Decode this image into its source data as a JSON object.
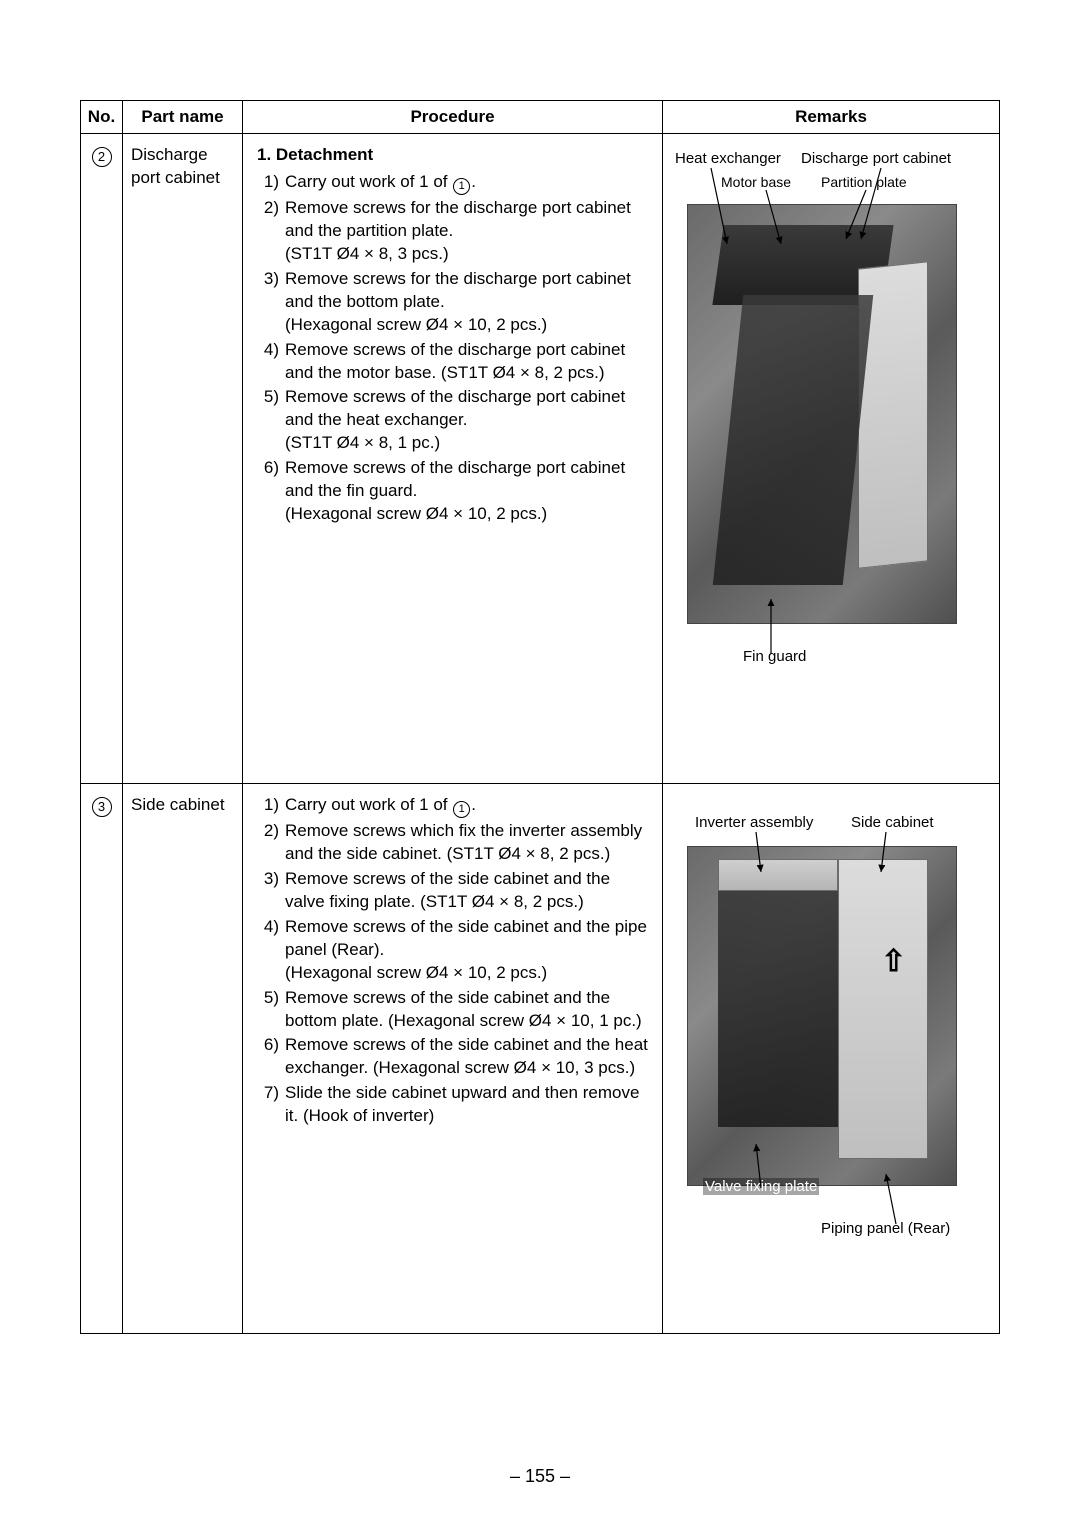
{
  "header": {
    "no": "No.",
    "part": "Part name",
    "proc": "Procedure",
    "rem": "Remarks"
  },
  "rows": [
    {
      "num": "2",
      "part": "Discharge port cabinet",
      "heading": "1. Detachment",
      "steps": [
        {
          "n": "1",
          "pre": "Carry out work of 1 of ",
          "circ": "1",
          "post": "."
        },
        {
          "n": "2",
          "text": "Remove screws for the discharge port cabinet and the partition plate.\n(ST1T Ø4 × 8, 3 pcs.)"
        },
        {
          "n": "3",
          "text": "Remove screws for the discharge port cabinet and the bottom plate.\n(Hexagonal screw Ø4 × 10, 2 pcs.)"
        },
        {
          "n": "4",
          "text": "Remove screws of the discharge port cabinet and the motor base. (ST1T Ø4 × 8, 2 pcs.)"
        },
        {
          "n": "5",
          "text": "Remove screws of the discharge port cabinet and the heat exchanger.\n(ST1T Ø4 × 8, 1 pc.)"
        },
        {
          "n": "6",
          "text": "Remove screws of the discharge port cabinet and the fin guard.\n(Hexagonal screw Ø4 × 10, 2 pcs.)"
        }
      ],
      "labels": {
        "heat_exchanger": "Heat exchanger",
        "discharge_port_cabinet": "Discharge port cabinet",
        "motor_base": "Motor base",
        "partition_plate": "Partition plate",
        "fin_guard": "Fin guard"
      }
    },
    {
      "num": "3",
      "part": "Side cabinet",
      "steps": [
        {
          "n": "1",
          "pre": "Carry out work of 1 of ",
          "circ": "1",
          "post": "."
        },
        {
          "n": "2",
          "text": "Remove screws which fix the inverter assembly and the side cabinet. (ST1T Ø4 × 8, 2 pcs.)"
        },
        {
          "n": "3",
          "text": "Remove screws of the side cabinet and the valve fixing plate. (ST1T Ø4 × 8, 2 pcs.)"
        },
        {
          "n": "4",
          "text": "Remove screws of the side cabinet and the pipe panel (Rear).\n(Hexagonal screw Ø4 × 10, 2 pcs.)"
        },
        {
          "n": "5",
          "text": "Remove screws of the side cabinet and the bottom plate. (Hexagonal screw Ø4 × 10, 1 pc.)"
        },
        {
          "n": "6",
          "text": "Remove screws of the side cabinet and the heat exchanger. (Hexagonal screw Ø4 × 10, 3 pcs.)"
        },
        {
          "n": "7",
          "text": "Slide the side cabinet upward and then remove it. (Hook of inverter)"
        }
      ],
      "labels": {
        "inverter_assembly": "Inverter assembly",
        "side_cabinet": "Side cabinet",
        "valve_fixing_plate": "Valve fixing plate",
        "piping_panel_rear": "Piping panel (Rear)"
      }
    }
  ],
  "page_number": "– 155 –",
  "colors": {
    "text": "#000000",
    "bg": "#ffffff",
    "photo_grad": [
      "#6a6a6a",
      "#8a8a8a",
      "#5a5a5a",
      "#7a7a7a",
      "#4f4f4f"
    ]
  },
  "fontsizes": {
    "body": 17,
    "label": 15,
    "label_small": 14,
    "pagenum": 18
  }
}
